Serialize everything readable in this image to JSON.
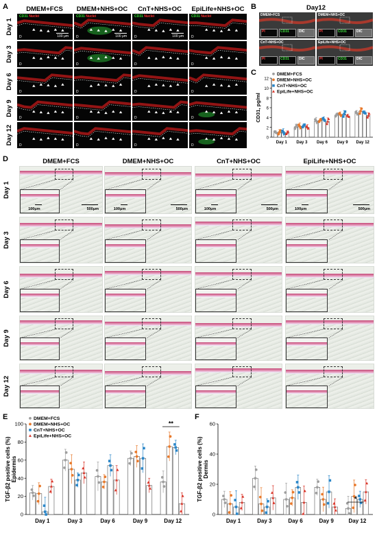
{
  "panels": {
    "A": "A",
    "B": "B",
    "C": "C",
    "D": "D",
    "E": "E",
    "F": "F"
  },
  "groups": [
    "DMEM+FCS",
    "DMEM+NHS+OC",
    "CnT+NHS+OC",
    "EpiLife+NHS+OC"
  ],
  "days": [
    "Day 1",
    "Day 3",
    "Day 6",
    "Day 9",
    "Day 12"
  ],
  "panel_a": {
    "stain_green": "CD31",
    "stain_red": "Nuclei",
    "dermis_label": "D",
    "scale_bar": "100 μm"
  },
  "panel_b": {
    "title": "Day12",
    "tiles": [
      "DMEM+FCS",
      "DMEM+NHS+OC",
      "CnT+NHS+OC",
      "EpiLife+NHS+OC"
    ],
    "channels": [
      "PI",
      "CD31",
      "DIC"
    ]
  },
  "panel_d": {
    "scale_small": "100μm",
    "scale_large": "500μm"
  },
  "colors": {
    "DMEM+FCS": "#9e9e9e",
    "DMEM+NHS+OC": "#e8792b",
    "CnT+NHS+OC": "#2a86c8",
    "EpiLife+NHS+OC": "#d9372b"
  },
  "chart_data": [
    {
      "panel": "C",
      "type": "bar",
      "ylabel": "CD31, pg/ml",
      "ylim": [
        0,
        12
      ],
      "yticks": [
        0,
        2,
        4,
        6,
        8,
        10,
        12
      ],
      "categories": [
        "Day 1",
        "Day 3",
        "Day 6",
        "Day 9",
        "Day 12"
      ],
      "series": [
        {
          "name": "DMEM+FCS",
          "values": [
            1.0,
            2.1,
            3.3,
            4.5,
            4.9
          ]
        },
        {
          "name": "DMEM+NHS+OC",
          "values": [
            1.0,
            2.2,
            3.4,
            4.6,
            5.3
          ]
        },
        {
          "name": "CnT+NHS+OC",
          "values": [
            1.0,
            2.3,
            3.6,
            4.7,
            5.0
          ]
        },
        {
          "name": "EpiLife+NHS+OC",
          "values": [
            0.9,
            2.0,
            3.2,
            4.3,
            4.4
          ]
        }
      ]
    },
    {
      "panel": "E",
      "type": "bar",
      "ylabel": "TGF-β2 positive cells (%)",
      "ylabel2": "Epidermis",
      "ylim": [
        0,
        100
      ],
      "yticks": [
        0,
        20,
        40,
        60,
        80,
        100
      ],
      "categories": [
        "Day 1",
        "Day 3",
        "Day 6",
        "Day 9",
        "Day 12"
      ],
      "series": [
        {
          "name": "DMEM+FCS",
          "values": [
            24,
            60,
            42,
            62,
            36
          ]
        },
        {
          "name": "DMEM+NHS+OC",
          "values": [
            23,
            50,
            36,
            64,
            75
          ]
        },
        {
          "name": "CnT+NHS+OC",
          "values": [
            3,
            38,
            54,
            62,
            74
          ]
        },
        {
          "name": "EpiLife+NHS+OC",
          "values": [
            31,
            46,
            38,
            32,
            12
          ]
        }
      ],
      "significance": [
        {
          "category": "Day 12",
          "label": "**"
        }
      ]
    },
    {
      "panel": "F",
      "type": "bar",
      "ylabel": "TGF-β2 positive cells (%)",
      "ylabel2": "Dermis",
      "ylim": [
        0,
        60
      ],
      "yticks": [
        0,
        20,
        40,
        60
      ],
      "categories": [
        "Day 1",
        "Day 3",
        "Day 6",
        "Day 9",
        "Day 12"
      ],
      "series": [
        {
          "name": "DMEM+FCS",
          "values": [
            10,
            24,
            10,
            18,
            4
          ]
        },
        {
          "name": "DMEM+NHS+OC",
          "values": [
            7,
            7,
            11,
            10,
            12
          ]
        },
        {
          "name": "CnT+NHS+OC",
          "values": [
            5,
            5,
            18,
            15,
            10
          ]
        },
        {
          "name": "EpiLife+NHS+OC",
          "values": [
            8,
            11,
            8,
            5,
            15
          ]
        }
      ],
      "significance": [
        {
          "category": "Day 12",
          "label": "*"
        }
      ]
    }
  ]
}
